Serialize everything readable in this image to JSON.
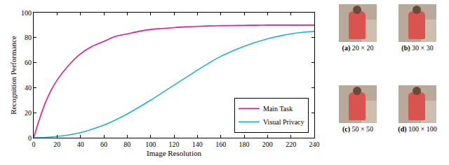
{
  "chart_data": {
    "type": "line",
    "x_label": "Image Resolution",
    "y_label": "Recognition Performance",
    "x": [
      0,
      5,
      10,
      15,
      20,
      30,
      40,
      50,
      60,
      70,
      80,
      90,
      100,
      110,
      120,
      130,
      140,
      150,
      160,
      170,
      180,
      190,
      200,
      210,
      220,
      230,
      240
    ],
    "series": [
      {
        "name": "Main Task",
        "color": "#e6198c",
        "values": [
          0,
          15,
          28,
          38,
          46,
          58,
          67,
          73,
          77,
          81,
          83,
          85,
          86.5,
          87.3,
          88,
          88.6,
          89,
          89.3,
          89.5,
          89.7,
          89.8,
          89.9,
          90,
          90,
          90,
          90,
          90
        ]
      },
      {
        "name": "Visual Privacy",
        "color": "#20b0e8",
        "values": [
          0,
          0.1,
          0.3,
          0.6,
          1,
          2.2,
          4,
          6.8,
          10,
          14.2,
          19,
          24.3,
          30,
          36,
          42,
          48,
          54,
          59.7,
          65,
          69.3,
          73,
          76.2,
          79,
          81.2,
          83,
          84.2,
          85
        ]
      }
    ],
    "xlim": [
      0,
      240
    ],
    "xticks": [
      0,
      20,
      40,
      60,
      80,
      100,
      120,
      140,
      160,
      180,
      200,
      220,
      240
    ],
    "ylim": [
      0,
      100
    ],
    "yticks": [
      0,
      20,
      40,
      60,
      80,
      100
    ],
    "grid": false,
    "legend": "lower right"
  },
  "images": [
    {
      "label": "(a)",
      "text": "20 × 20"
    },
    {
      "label": "(b)",
      "text": "30 × 30"
    },
    {
      "label": "(c)",
      "text": "50 × 50"
    },
    {
      "label": "(d)",
      "text": "100 × 100"
    }
  ]
}
